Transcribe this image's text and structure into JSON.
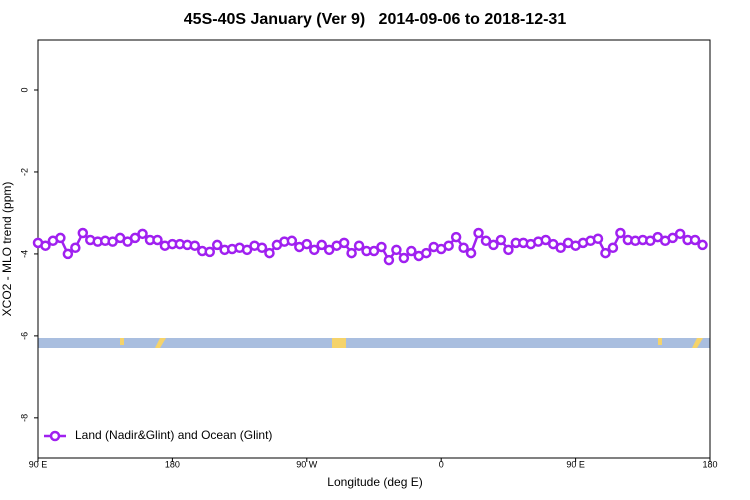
{
  "chart_data": {
    "type": "line",
    "title": "45S-40S January (Ver 9)   2014-09-06 to 2018-12-31",
    "xlabel": "Longitude (deg E)",
    "ylabel": "XCO2 - MLO trend (ppm)",
    "xlim": [
      90,
      540
    ],
    "ylim": [
      -8.98,
      1.22
    ],
    "xticks": [
      {
        "value": 90,
        "label": "90 E"
      },
      180,
      {
        "value": 270,
        "label": "90 W"
      },
      {
        "value": 360,
        "label": "0"
      },
      {
        "value": 450,
        "label": "90 E"
      },
      180.0001
    ],
    "yticks": [
      0,
      -2,
      -4,
      -6,
      -8
    ],
    "legend": "bottom-left",
    "series": [
      {
        "name": "Land (Nadir&Glint) and Ocean (Glint)",
        "color": "#a020f0",
        "x": [
          90,
          95,
          100,
          105,
          110,
          115,
          120,
          125,
          130,
          135,
          140,
          145,
          150,
          155,
          160,
          165,
          170,
          175,
          180,
          185,
          190,
          195,
          200,
          205,
          210,
          215,
          220,
          225,
          230,
          235,
          240,
          245,
          250,
          255,
          260,
          265,
          270,
          275,
          280,
          285,
          290,
          295,
          300,
          305,
          310,
          315,
          320,
          325,
          330,
          335,
          340,
          345,
          350,
          355,
          360,
          365,
          370,
          375,
          380,
          385,
          390,
          395,
          400,
          405,
          410,
          415,
          420,
          425,
          430,
          435,
          440,
          445,
          450,
          455,
          460,
          465,
          470,
          475,
          480,
          485,
          490,
          495,
          500,
          505,
          510,
          515,
          520,
          525,
          530,
          535
        ],
        "values": [
          -3.73,
          -3.8,
          -3.68,
          -3.61,
          -4.0,
          -3.85,
          -3.49,
          -3.66,
          -3.7,
          -3.68,
          -3.7,
          -3.61,
          -3.7,
          -3.61,
          -3.51,
          -3.66,
          -3.66,
          -3.8,
          -3.76,
          -3.76,
          -3.78,
          -3.8,
          -3.93,
          -3.95,
          -3.78,
          -3.9,
          -3.88,
          -3.85,
          -3.9,
          -3.8,
          -3.85,
          -3.98,
          -3.78,
          -3.7,
          -3.68,
          -3.83,
          -3.76,
          -3.9,
          -3.78,
          -3.9,
          -3.8,
          -3.73,
          -3.98,
          -3.8,
          -3.93,
          -3.93,
          -3.83,
          -4.15,
          -3.9,
          -4.1,
          -3.93,
          -4.05,
          -3.98,
          -3.83,
          -3.88,
          -3.8,
          -3.59,
          -3.85,
          -3.98,
          -3.49,
          -3.68,
          -3.78,
          -3.66,
          -3.9,
          -3.73,
          -3.73,
          -3.76,
          -3.7,
          -3.66,
          -3.76,
          -3.85,
          -3.73,
          -3.8,
          -3.73,
          -3.68,
          -3.63,
          -3.98,
          -3.85,
          -3.49,
          -3.66,
          -3.68,
          -3.66,
          -3.68,
          -3.59,
          -3.68,
          -3.61,
          -3.51,
          -3.66,
          -3.66,
          -3.78
        ]
      }
    ]
  }
}
